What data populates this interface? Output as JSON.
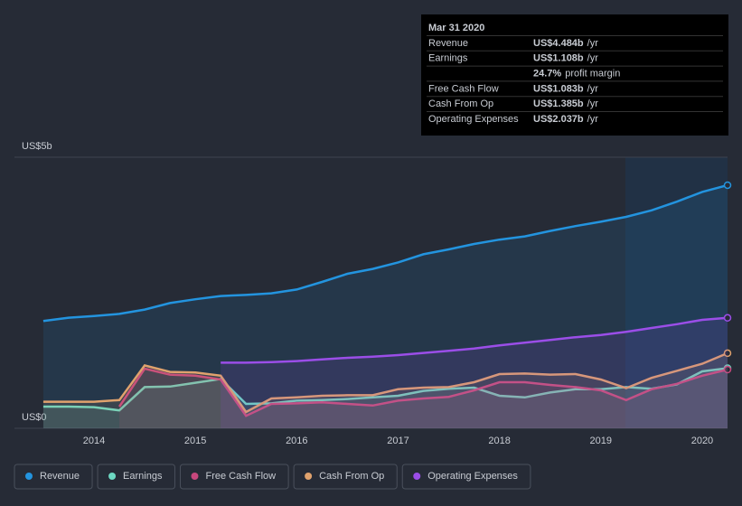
{
  "chart_data": {
    "type": "line",
    "x": [
      2013.5,
      2013.75,
      2014,
      2014.25,
      2014.5,
      2014.75,
      2015,
      2015.25,
      2015.5,
      2015.75,
      2016,
      2016.25,
      2016.5,
      2016.75,
      2017,
      2017.25,
      2017.5,
      2017.75,
      2018,
      2018.25,
      2018.5,
      2018.75,
      2019,
      2019.25,
      2019.5,
      2019.75,
      2020,
      2020.25
    ],
    "series": [
      {
        "name": "Revenue",
        "color": "#2394df",
        "values": [
          1.98,
          2.04,
          2.07,
          2.11,
          2.19,
          2.31,
          2.38,
          2.44,
          2.46,
          2.49,
          2.56,
          2.7,
          2.85,
          2.94,
          3.06,
          3.21,
          3.3,
          3.4,
          3.48,
          3.54,
          3.64,
          3.73,
          3.81,
          3.9,
          4.02,
          4.18,
          4.36,
          4.484
        ]
      },
      {
        "name": "Earnings",
        "color": "#6dd8c2",
        "values": [
          0.4,
          0.4,
          0.39,
          0.33,
          0.76,
          0.77,
          0.84,
          0.91,
          0.45,
          0.46,
          0.51,
          0.52,
          0.54,
          0.57,
          0.6,
          0.69,
          0.73,
          0.75,
          0.6,
          0.57,
          0.66,
          0.72,
          0.72,
          0.76,
          0.73,
          0.81,
          1.05,
          1.108
        ]
      },
      {
        "name": "Free Cash Flow",
        "color": "#c7477d",
        "values": [
          null,
          null,
          null,
          0.4,
          1.1,
          0.99,
          0.97,
          0.9,
          0.23,
          0.45,
          0.46,
          0.48,
          0.45,
          0.42,
          0.51,
          0.55,
          0.58,
          0.7,
          0.85,
          0.85,
          0.8,
          0.76,
          0.7,
          0.52,
          0.72,
          0.82,
          0.97,
          1.083
        ]
      },
      {
        "name": "Cash From Op",
        "color": "#e0a26d",
        "values": [
          0.49,
          0.49,
          0.49,
          0.52,
          1.16,
          1.04,
          1.03,
          0.97,
          0.3,
          0.55,
          0.57,
          0.6,
          0.61,
          0.61,
          0.72,
          0.75,
          0.76,
          0.85,
          1.0,
          1.01,
          0.99,
          1.0,
          0.9,
          0.74,
          0.93,
          1.06,
          1.19,
          1.385
        ]
      },
      {
        "name": "Operating Expenses",
        "color": "#9b4ee8",
        "values": [
          null,
          null,
          null,
          null,
          null,
          null,
          null,
          1.21,
          1.21,
          1.22,
          1.24,
          1.27,
          1.3,
          1.32,
          1.35,
          1.39,
          1.43,
          1.47,
          1.53,
          1.58,
          1.63,
          1.68,
          1.72,
          1.78,
          1.85,
          1.92,
          2.0,
          2.037
        ]
      }
    ],
    "xlim": [
      2013.26,
      2020.25
    ],
    "xticks": [
      2014,
      2015,
      2016,
      2017,
      2018,
      2019,
      2020
    ],
    "ylim": [
      0,
      5
    ],
    "yticks": [
      {
        "value": 0,
        "label": "US$0"
      },
      {
        "value": 5,
        "label": "US$5b"
      }
    ],
    "tooltip": {
      "title": "Mar 31 2020",
      "rows": [
        {
          "label": "Revenue",
          "value": "US$4.484b",
          "unit": "/yr"
        },
        {
          "label": "Earnings",
          "value": "US$1.108b",
          "unit": "/yr"
        },
        {
          "label": "",
          "value": "24.7%",
          "unit": "profit margin"
        },
        {
          "label": "Free Cash Flow",
          "value": "US$1.083b",
          "unit": "/yr"
        },
        {
          "label": "Cash From Op",
          "value": "US$1.385b",
          "unit": "/yr"
        },
        {
          "label": "Operating Expenses",
          "value": "US$2.037b",
          "unit": "/yr"
        }
      ]
    }
  }
}
